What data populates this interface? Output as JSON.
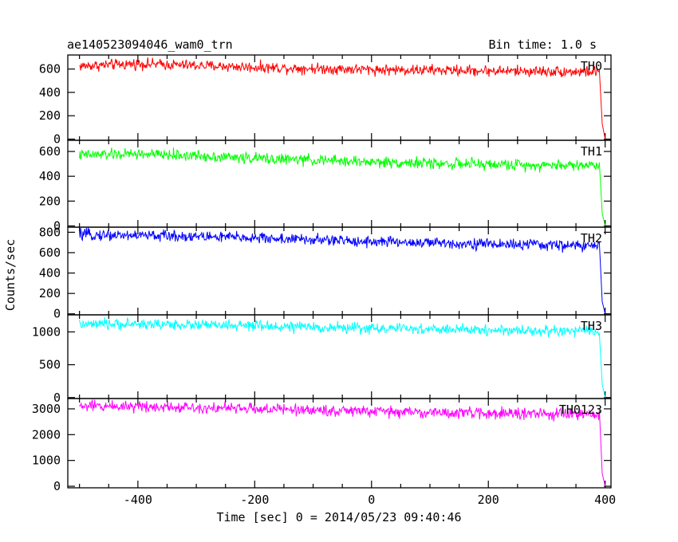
{
  "header": {
    "title": "ae140523094046_wam0_trn",
    "bin_time": "Bin time: 1.0 s"
  },
  "chart_data": {
    "type": "line",
    "title": "ae140523094046_wam0_trn",
    "xlabel": "Time [sec] 0 = 2014/05/23 09:40:46",
    "ylabel": "Counts/sec",
    "xlim": [
      -520,
      410
    ],
    "x_ticks": [
      -400,
      -200,
      0,
      200,
      400
    ],
    "grid": false,
    "panels": [
      {
        "name": "TH0",
        "color": "#ff0000",
        "ylim": [
          -10,
          720
        ],
        "y_ticks": [
          0,
          200,
          400,
          600
        ],
        "x": [
          -500,
          -400,
          -300,
          -200,
          -100,
          0,
          100,
          200,
          300,
          390,
          395,
          400
        ],
        "y": [
          625,
          645,
          630,
          615,
          605,
          595,
          590,
          585,
          580,
          575,
          130,
          0
        ]
      },
      {
        "name": "TH1",
        "color": "#00ff00",
        "ylim": [
          -10,
          690
        ],
        "y_ticks": [
          0,
          200,
          400,
          600
        ],
        "x": [
          -500,
          -400,
          -300,
          -200,
          -100,
          0,
          100,
          200,
          300,
          390,
          395,
          400
        ],
        "y": [
          570,
          580,
          565,
          545,
          530,
          515,
          505,
          495,
          490,
          490,
          100,
          0
        ]
      },
      {
        "name": "TH2",
        "color": "#0000ff",
        "ylim": [
          -10,
          850
        ],
        "y_ticks": [
          0,
          200,
          400,
          600,
          800
        ],
        "x": [
          -500,
          -400,
          -300,
          -200,
          -100,
          0,
          100,
          200,
          300,
          390,
          395,
          400
        ],
        "y": [
          775,
          770,
          760,
          745,
          725,
          710,
          695,
          685,
          675,
          665,
          120,
          0
        ]
      },
      {
        "name": "TH3",
        "color": "#00ffff",
        "ylim": [
          -15,
          1260
        ],
        "y_ticks": [
          0,
          500,
          1000
        ],
        "x": [
          -500,
          -400,
          -300,
          -200,
          -100,
          0,
          100,
          200,
          300,
          390,
          395,
          400
        ],
        "y": [
          1110,
          1120,
          1105,
          1090,
          1070,
          1055,
          1040,
          1030,
          1015,
          1005,
          200,
          0
        ]
      },
      {
        "name": "TH0123",
        "color": "#ff00ff",
        "ylim": [
          -60,
          3400
        ],
        "y_ticks": [
          0,
          1000,
          2000,
          3000
        ],
        "x": [
          -500,
          -400,
          -300,
          -200,
          -100,
          0,
          100,
          200,
          300,
          390,
          395,
          400
        ],
        "y": [
          3100,
          3110,
          3060,
          3000,
          2950,
          2900,
          2860,
          2830,
          2800,
          2780,
          500,
          0
        ]
      }
    ]
  }
}
